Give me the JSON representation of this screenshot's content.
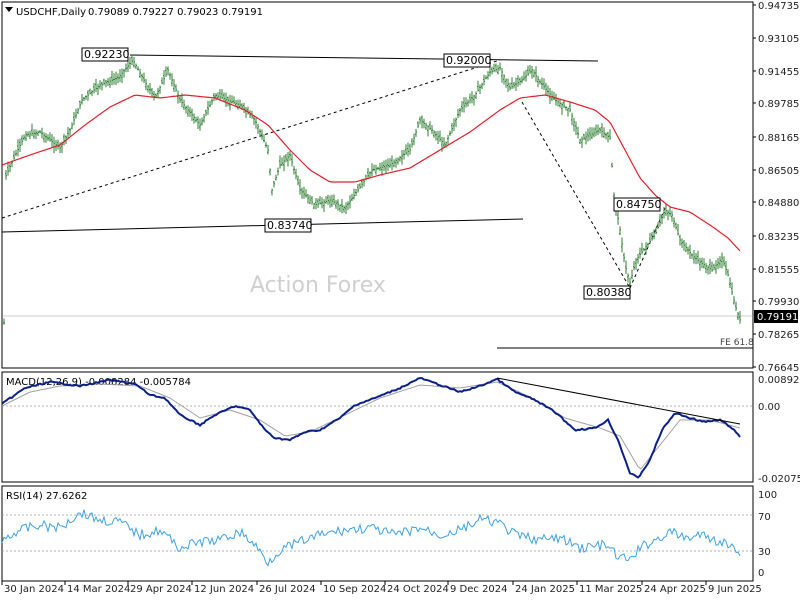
{
  "colors": {
    "bg": "#ffffff",
    "frame": "#000000",
    "price_bars": "#2e7d32",
    "sma": "#e0202a",
    "macd_line": "#0b1f8a",
    "macd_signal": "#a0a0a0",
    "rsi_line": "#3fa0e0",
    "watermark": "#cfcfcf"
  },
  "header": {
    "symbol": "USDCHF,Daily",
    "ohlc": "0.79089 0.79227 0.79023 0.79191"
  },
  "watermark": "Action Forex",
  "price_panel": {
    "y_ticks": [
      "0.94735",
      "0.93105",
      "0.91455",
      "0.89785",
      "0.88165",
      "0.86505",
      "0.84880",
      "0.83235",
      "0.81555",
      "0.79930",
      "0.78265",
      "0.76645"
    ],
    "current_price_label": "0.79191",
    "fe_label": "FE 61.8",
    "annotations": [
      "0.92230",
      "0.92000",
      "0.83740",
      "0.84750",
      "0.80380"
    ]
  },
  "macd_panel": {
    "header": "MACD(12,26,9) -0.008284 -0.005784",
    "y_ticks": [
      "0.008923",
      "0.00",
      "-0.020759"
    ]
  },
  "rsi_panel": {
    "header": "RSI(14) 27.6262",
    "y_ticks": [
      "100",
      "70",
      "30",
      "0"
    ]
  },
  "x_axis": {
    "labels": [
      "30 Jan 2024",
      "14 Mar 2024",
      "29 Apr 2024",
      "12 Jun 2024",
      "26 Jul 2024",
      "10 Sep 2024",
      "24 Oct 2024",
      "9 Dec 2024",
      "24 Jan 2025",
      "11 Mar 2025",
      "24 Apr 2025",
      "9 Jun 2025"
    ]
  },
  "chart_data": [
    {
      "type": "line",
      "title": "USDCHF,Daily",
      "x": [
        "30 Jan 2024",
        "14 Mar 2024",
        "29 Apr 2024",
        "12 Jun 2024",
        "26 Jul 2024",
        "10 Sep 2024",
        "24 Oct 2024",
        "9 Dec 2024",
        "24 Jan 2025",
        "11 Mar 2025",
        "24 Apr 2025",
        "9 Jun 2025"
      ],
      "series": [
        {
          "values": [
            0.861,
            0.888,
            0.912,
            0.896,
            0.854,
            0.848,
            0.87,
            0.898,
            0.912,
            0.88,
            0.822,
            0.817
          ]
        },
        {
          "values": [
            0.866,
            0.88,
            0.904,
            0.9,
            0.875,
            0.851,
            0.861,
            0.885,
            0.905,
            0.895,
            0.851,
            0.827
          ]
        }
      ],
      "ylim": [
        0.76645,
        0.94735
      ]
    },
    {
      "type": "line",
      "title": "MACD(12,26,9) -0.008284 -0.005784",
      "x": [
        "30 Jan 2024",
        "14 Mar 2024",
        "29 Apr 2024",
        "12 Jun 2024",
        "26 Jul 2024",
        "10 Sep 2024",
        "24 Oct 2024",
        "9 Dec 2024",
        "24 Jan 2025",
        "11 Mar 2025",
        "24 Apr 2025",
        "9 Jun 2025"
      ],
      "series": [
        {
          "values": [
            0.0,
            0.006,
            0.005,
            -0.004,
            -0.01,
            -0.008,
            0.002,
            0.008,
            0.0,
            -0.005,
            -0.004,
            -0.008
          ]
        },
        {
          "values": [
            -0.001,
            0.005,
            0.005,
            -0.002,
            -0.008,
            -0.009,
            0.0,
            0.007,
            0.003,
            -0.004,
            -0.007,
            -0.006
          ]
        }
      ],
      "ylim": [
        -0.020759,
        0.008923
      ]
    },
    {
      "type": "line",
      "title": "RSI(14) 27.6262",
      "x": [
        "30 Jan 2024",
        "14 Mar 2024",
        "29 Apr 2024",
        "12 Jun 2024",
        "26 Jul 2024",
        "10 Sep 2024",
        "24 Oct 2024",
        "9 Dec 2024",
        "24 Jan 2025",
        "11 Mar 2025",
        "24 Apr 2025",
        "9 Jun 2025"
      ],
      "series": [
        {
          "values": [
            58,
            72,
            65,
            45,
            28,
            48,
            55,
            62,
            52,
            40,
            50,
            30
          ]
        }
      ],
      "ylim": [
        0,
        100
      ]
    }
  ]
}
